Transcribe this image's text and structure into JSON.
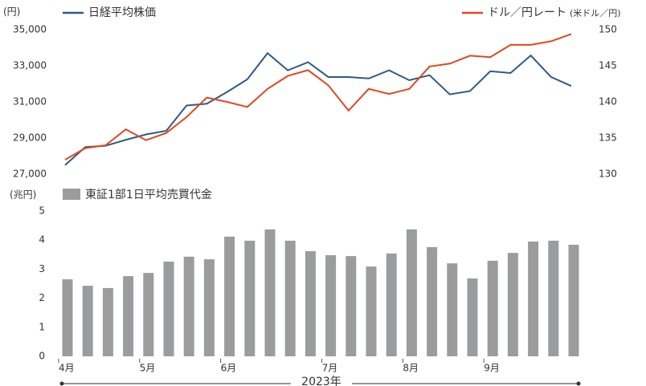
{
  "chart_data": [
    {
      "type": "line",
      "y_unit": "(円)",
      "y2_unit": "(米ドル／円)",
      "ylim": [
        27000,
        35000
      ],
      "yticks": [
        {
          "value": 27000,
          "label": "27,000"
        },
        {
          "value": 29000,
          "label": "29,000"
        },
        {
          "value": 31000,
          "label": "31,000"
        },
        {
          "value": 33000,
          "label": "33,000"
        },
        {
          "value": 35000,
          "label": "35,000"
        }
      ],
      "y2lim": [
        130,
        150
      ],
      "y2ticks": [
        130,
        135,
        140,
        145,
        150
      ],
      "grid": false,
      "series": [
        {
          "name": "日経平均株価",
          "color": "#2e5a8a",
          "values": [
            27500,
            28500,
            28570,
            28900,
            29200,
            29400,
            30800,
            30900,
            31550,
            32250,
            33700,
            32750,
            33200,
            32380,
            32380,
            32300,
            32750,
            32200,
            32480,
            31420,
            31600,
            32700,
            32600,
            33570,
            32380,
            31880
          ]
        },
        {
          "name": "ドル／円レート",
          "color": "#e0481f",
          "axis": "y2",
          "values": [
            132.0,
            133.6,
            134.0,
            136.2,
            134.7,
            135.7,
            137.9,
            140.6,
            140.0,
            139.3,
            141.8,
            143.6,
            144.4,
            142.3,
            138.8,
            141.8,
            141.1,
            141.8,
            144.9,
            145.3,
            146.4,
            146.2,
            147.9,
            147.9,
            148.4,
            149.4
          ]
        }
      ]
    },
    {
      "type": "bar",
      "y_unit": "(兆円)",
      "x_label": "2023年",
      "categories": [
        "4月",
        null,
        null,
        null,
        "5月",
        null,
        null,
        null,
        "6月",
        null,
        null,
        null,
        null,
        "7月",
        null,
        null,
        null,
        "8月",
        null,
        null,
        null,
        "9月",
        null,
        null,
        null,
        null
      ],
      "ylim": [
        0,
        5
      ],
      "yticks": [
        0,
        1,
        2,
        3,
        4,
        5
      ],
      "grid": false,
      "series": [
        {
          "name": "東証1部1日平均売買代金",
          "color": "#9a9c9e",
          "values": [
            2.65,
            2.43,
            2.35,
            2.76,
            2.87,
            3.26,
            3.43,
            3.34,
            4.12,
            3.98,
            4.37,
            3.98,
            3.62,
            3.48,
            3.45,
            3.09,
            3.54,
            4.37,
            3.76,
            3.2,
            2.68,
            3.29,
            3.56,
            3.95,
            3.98,
            3.84
          ]
        }
      ]
    }
  ]
}
